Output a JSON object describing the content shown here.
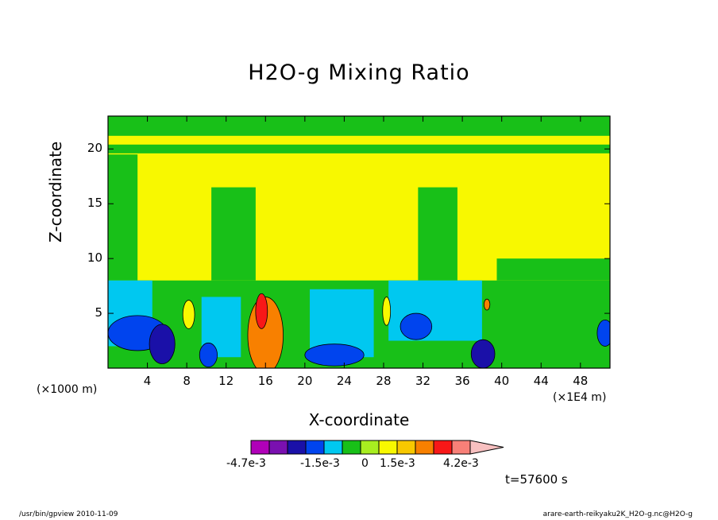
{
  "chart_data": {
    "type": "contour",
    "title": "H2O-g Mixing Ratio",
    "xlabel": "X-coordinate",
    "ylabel": "Z-coordinate",
    "x_unit_label": "(×1000 m)",
    "x_scale_label": "(×1E4 m)",
    "xlim": [
      0,
      51
    ],
    "ylim": [
      0,
      23
    ],
    "x_ticks": [
      4,
      8,
      12,
      16,
      20,
      24,
      28,
      32,
      36,
      40,
      44,
      48
    ],
    "y_ticks": [
      5,
      10,
      15,
      20
    ],
    "time_label": "t=57600 s",
    "colorbar": {
      "colors": [
        "#b000b8",
        "#7a10b0",
        "#1a10a8",
        "#0044ee",
        "#00c8f0",
        "#18c018",
        "#a8ee20",
        "#f8f800",
        "#f8c800",
        "#f88000",
        "#f81818",
        "#f88078",
        "#f8c0c0"
      ],
      "tick_labels": [
        "-4.7e-3",
        "-1.5e-3",
        "0",
        "1.5e-3",
        "4.2e-3"
      ]
    },
    "colors": {
      "near_zero_green": "#18c018",
      "positive_yellow": "#f8f800",
      "negative_cyan": "#00c8f0",
      "negative_blue": "#0044ee",
      "strong_negative_navy": "#1a10a8",
      "strong_positive_orange": "#f88000",
      "strong_positive_red": "#f81818"
    }
  },
  "footer": {
    "left": "/usr/bin/gpview   2010-11-09",
    "right": "arare-earth-reikyaku2K_H2O-g.nc@H2O-g"
  }
}
